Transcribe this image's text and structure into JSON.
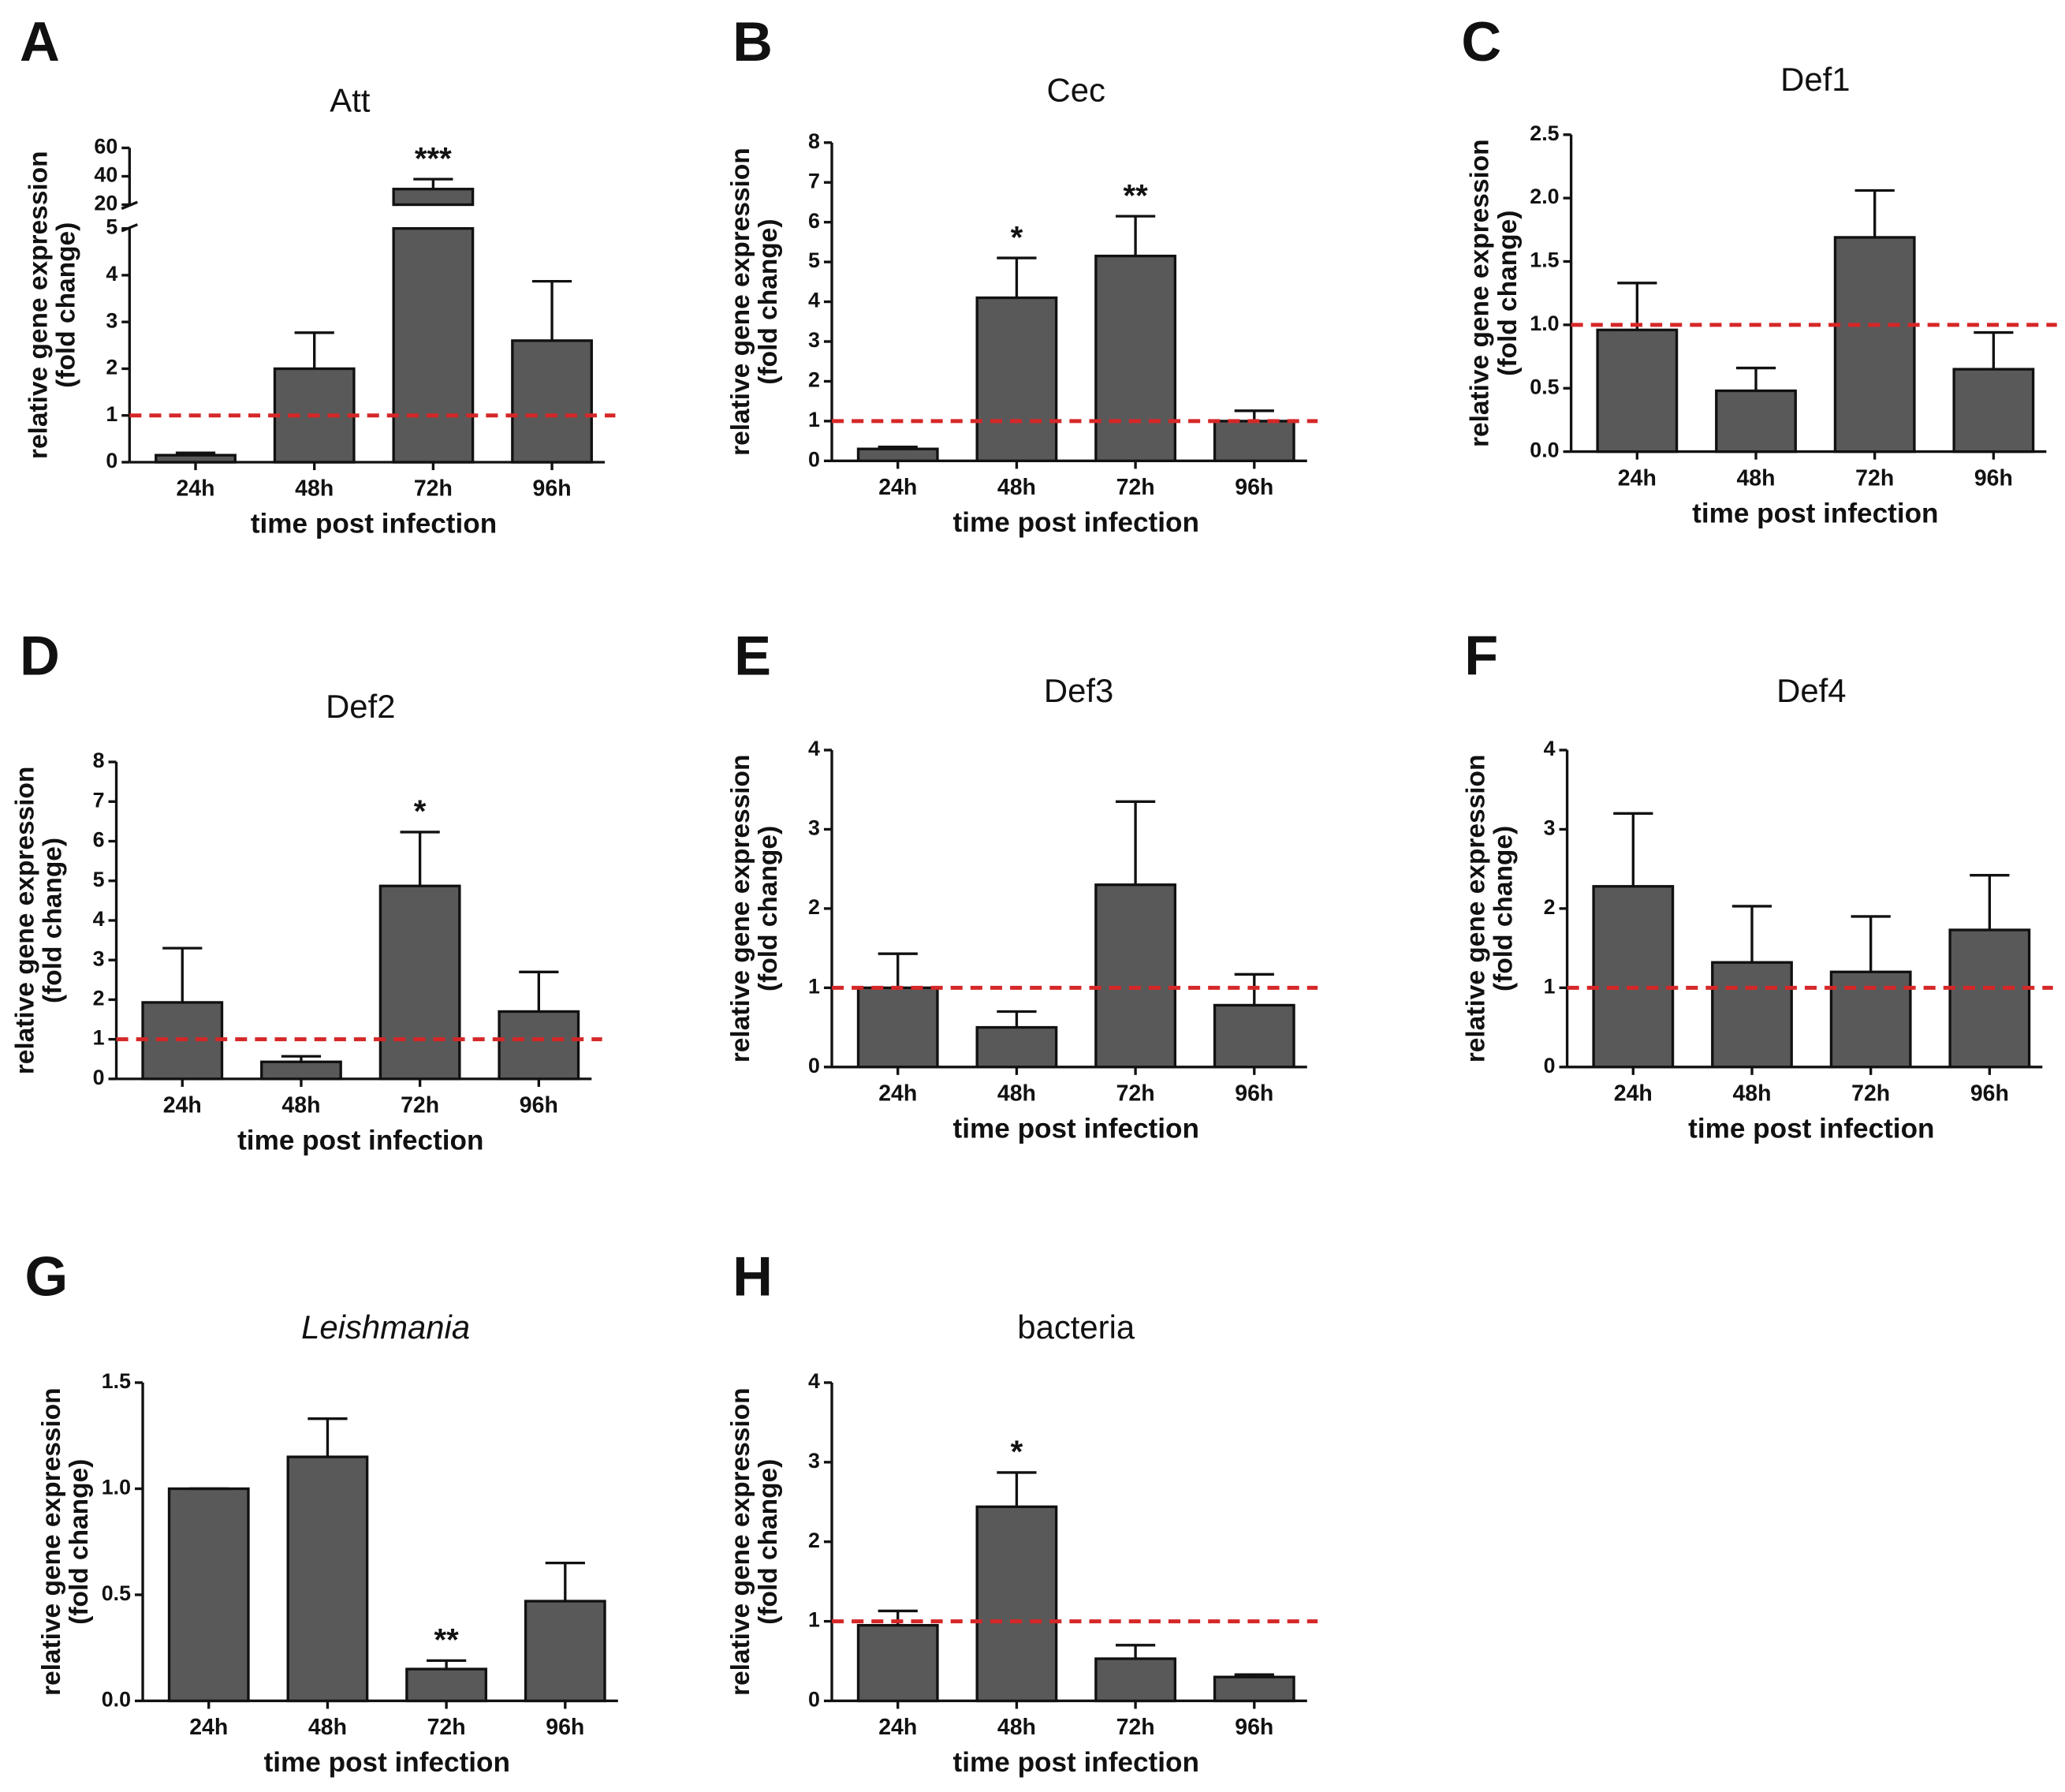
{
  "chart_data": [
    {
      "type": "bar",
      "panel": "A",
      "title": "Att",
      "categories": [
        "24h",
        "48h",
        "72h",
        "96h"
      ],
      "values": [
        0.15,
        2.0,
        31,
        2.6
      ],
      "errors": [
        0.05,
        0.77,
        7,
        1.27
      ],
      "annotations": [
        null,
        null,
        "***",
        null
      ],
      "ylim": [
        0,
        60
      ],
      "y_break": [
        5,
        20
      ],
      "yticks": [
        0,
        1,
        2,
        3,
        4,
        5,
        20,
        40,
        60
      ],
      "ylabel": [
        "relative gene expression",
        "(fold change)"
      ],
      "xlabel": "time post infection",
      "color": "#595959",
      "reference_line": 1,
      "reference_color": "#d62728"
    },
    {
      "type": "bar",
      "panel": "B",
      "title": "Cec",
      "categories": [
        "24h",
        "48h",
        "72h",
        "96h"
      ],
      "values": [
        0.3,
        4.1,
        5.15,
        1.0
      ],
      "errors": [
        0.05,
        1.0,
        1.0,
        0.26
      ],
      "annotations": [
        null,
        "*",
        "**",
        null
      ],
      "ylim": [
        0,
        8
      ],
      "yticks": [
        0,
        1,
        2,
        3,
        4,
        5,
        6,
        7,
        8
      ],
      "ylabel": [
        "relative gene expression",
        "(fold change)"
      ],
      "xlabel": "time post infection",
      "color": "#595959",
      "reference_line": 1,
      "reference_color": "#d62728"
    },
    {
      "type": "bar",
      "panel": "C",
      "title": "Def1",
      "categories": [
        "24h",
        "48h",
        "72h",
        "96h"
      ],
      "values": [
        0.96,
        0.48,
        1.69,
        0.65
      ],
      "errors": [
        0.37,
        0.18,
        0.37,
        0.29
      ],
      "annotations": [
        null,
        null,
        null,
        null
      ],
      "ylim": [
        0,
        2.5
      ],
      "yticks": [
        {
          "value": 0,
          "label": "0.0"
        },
        0.5,
        {
          "value": 1,
          "label": "1.0"
        },
        1.5,
        {
          "value": 2,
          "label": "2.0"
        },
        2.5
      ],
      "ylabel": [
        "relative gene expression",
        "(fold change)"
      ],
      "xlabel": "time post infection",
      "color": "#595959",
      "reference_line": 1,
      "reference_color": "#d62728"
    },
    {
      "type": "bar",
      "panel": "D",
      "title": "Def2",
      "categories": [
        "24h",
        "48h",
        "72h",
        "96h"
      ],
      "values": [
        1.93,
        0.43,
        4.87,
        1.7
      ],
      "errors": [
        1.37,
        0.14,
        1.36,
        1.0
      ],
      "annotations": [
        null,
        null,
        "*",
        null
      ],
      "ylim": [
        0,
        8
      ],
      "yticks": [
        0,
        1,
        2,
        3,
        4,
        5,
        6,
        7,
        8
      ],
      "ylabel": [
        "relative gene expression",
        "(fold change)"
      ],
      "xlabel": "time post infection",
      "color": "#595959",
      "reference_line": 1,
      "reference_color": "#d62728"
    },
    {
      "type": "bar",
      "panel": "E",
      "title": "Def3",
      "categories": [
        "24h",
        "48h",
        "72h",
        "96h"
      ],
      "values": [
        1.0,
        0.5,
        2.3,
        0.78
      ],
      "errors": [
        0.43,
        0.2,
        1.05,
        0.39
      ],
      "annotations": [
        null,
        null,
        null,
        null
      ],
      "ylim": [
        0,
        4
      ],
      "yticks": [
        0,
        1,
        2,
        3,
        4
      ],
      "ylabel": [
        "relative gene expression",
        "(fold change)"
      ],
      "xlabel": "time post infection",
      "color": "#595959",
      "reference_line": 1,
      "reference_color": "#d62728"
    },
    {
      "type": "bar",
      "panel": "F",
      "title": "Def4",
      "categories": [
        "24h",
        "48h",
        "72h",
        "96h"
      ],
      "values": [
        2.28,
        1.32,
        1.2,
        1.73
      ],
      "errors": [
        0.92,
        0.71,
        0.7,
        0.69
      ],
      "annotations": [
        null,
        null,
        null,
        null
      ],
      "ylim": [
        0,
        4
      ],
      "yticks": [
        0,
        1,
        2,
        3,
        4
      ],
      "ylabel": [
        "relative gene expression",
        "(fold change)"
      ],
      "xlabel": "time post infection",
      "color": "#595959",
      "reference_line": 1,
      "reference_color": "#d62728"
    },
    {
      "type": "bar",
      "panel": "G",
      "title": "Leishmania",
      "title_style": "italic",
      "categories": [
        "24h",
        "48h",
        "72h",
        "96h"
      ],
      "values": [
        1.0,
        1.15,
        0.15,
        0.47
      ],
      "errors": [
        0,
        0.18,
        0.04,
        0.18
      ],
      "annotations": [
        null,
        null,
        "**",
        null
      ],
      "ylim": [
        0,
        1.5
      ],
      "yticks": [
        {
          "value": 0,
          "label": "0.0"
        },
        0.5,
        {
          "value": 1,
          "label": "1.0"
        },
        1.5
      ],
      "ylabel": [
        "relative gene expression",
        "(fold change)"
      ],
      "xlabel": "time post infection",
      "color": "#595959"
    },
    {
      "type": "bar",
      "panel": "H",
      "title": "bacteria",
      "categories": [
        "24h",
        "48h",
        "72h",
        "96h"
      ],
      "values": [
        0.95,
        2.44,
        0.53,
        0.3
      ],
      "errors": [
        0.18,
        0.43,
        0.17,
        0.03
      ],
      "annotations": [
        null,
        "*",
        null,
        null
      ],
      "ylim": [
        0,
        4
      ],
      "yticks": [
        0,
        1,
        2,
        3,
        4
      ],
      "ylabel": [
        "relative gene expression",
        "(fold change)"
      ],
      "xlabel": "time post infection",
      "color": "#595959",
      "reference_line": 1,
      "reference_color": "#d62728"
    }
  ]
}
